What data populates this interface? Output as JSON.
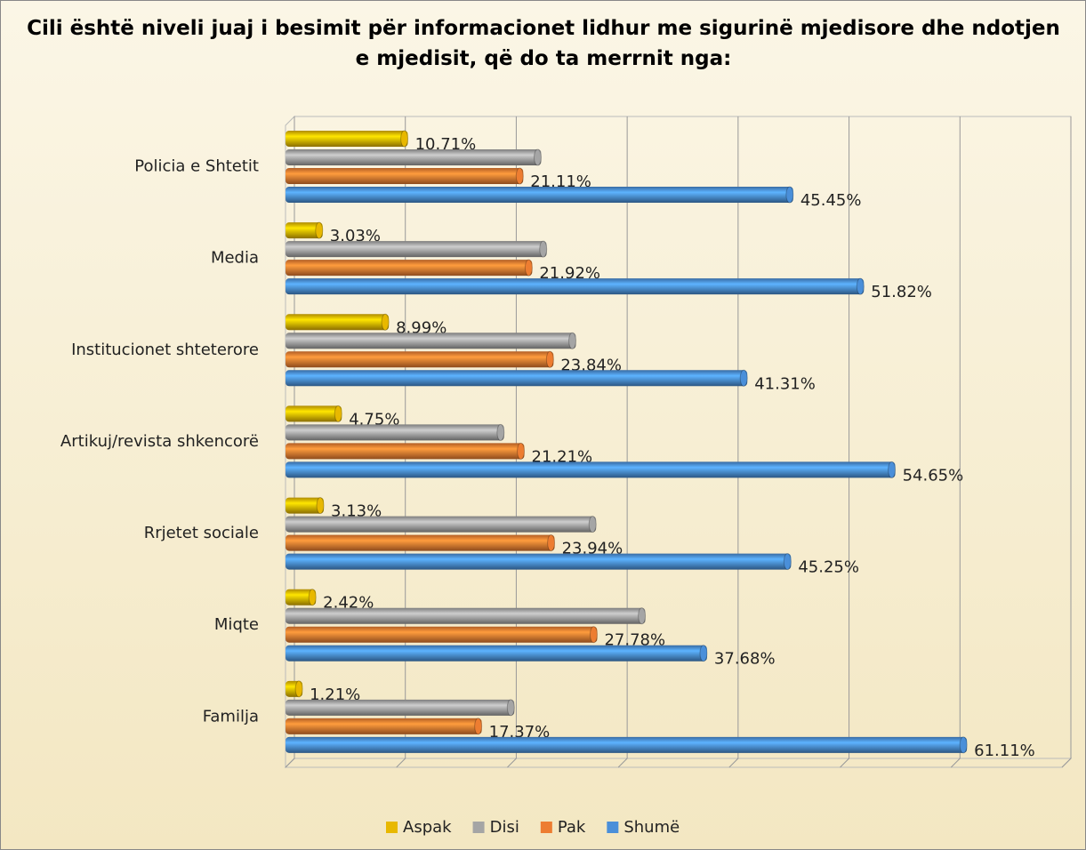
{
  "chart_data": {
    "type": "bar",
    "orientation": "horizontal",
    "title": "Cili është niveli juaj i besimit për informacionet lidhur me sigurinë mjedisore dhe ndotjen e mjedisit, që do ta merrnit nga:",
    "categories": [
      "Policia e Shtetit",
      "Media",
      "Institucionet shteterore",
      "Artikuj/revista shkencorë",
      "Rrjetet sociale",
      "Miqte",
      "Familja"
    ],
    "series": [
      {
        "name": "Aspak",
        "color": "#e8b800",
        "values": [
          10.71,
          3.03,
          8.99,
          4.75,
          3.13,
          2.42,
          1.21
        ],
        "value_labels": [
          "10.71%",
          "3.03%",
          "8.99%",
          "4.75%",
          "3.13%",
          "2.42%",
          "1.21%"
        ]
      },
      {
        "name": "Disi",
        "color": "#a5a5a5",
        "values": [
          22.73,
          23.23,
          25.86,
          19.39,
          27.68,
          32.12,
          20.31
        ]
      },
      {
        "name": "Pak",
        "color": "#ed7d31",
        "values": [
          21.11,
          21.92,
          23.84,
          21.21,
          23.94,
          27.78,
          17.37
        ],
        "value_labels": [
          "21.11%",
          "21.92%",
          "23.84%",
          "21.21%",
          "23.94%",
          "27.78%",
          "17.37%"
        ]
      },
      {
        "name": "Shumë",
        "color": "#4a8fd9",
        "values": [
          45.45,
          51.82,
          41.31,
          54.65,
          45.25,
          37.68,
          61.11
        ],
        "value_labels": [
          "45.45%",
          "51.82%",
          "41.31%",
          "54.65%",
          "45.25%",
          "37.68%",
          "61.11%"
        ]
      }
    ],
    "xlim": [
      0,
      70
    ],
    "xticks": [
      0,
      10,
      20,
      30,
      40,
      50,
      60,
      70
    ],
    "grid": true,
    "legend": "bottom"
  }
}
